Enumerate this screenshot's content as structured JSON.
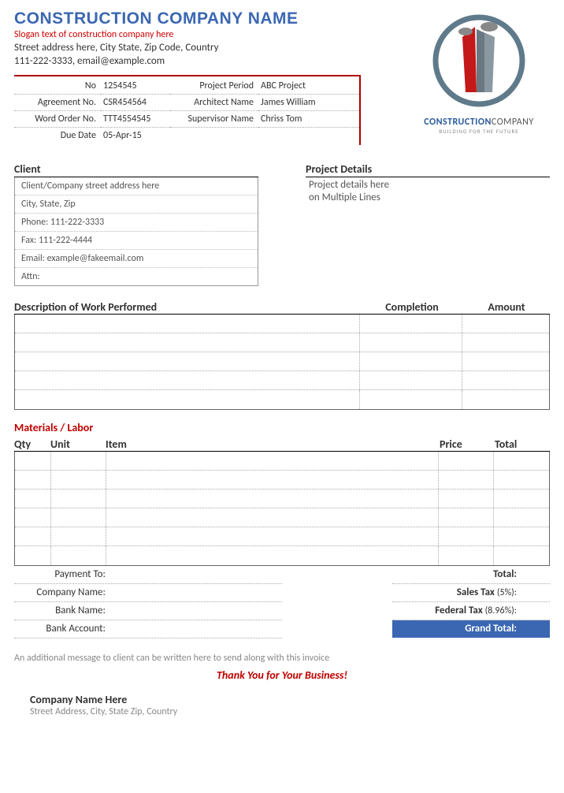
{
  "header": {
    "company_name": "CONSTRUCTION COMPANY NAME",
    "slogan": "Slogan text of construction company here",
    "address": "Street address here, City State, Zip Code, Country",
    "contact": "111-222-3333, email@example.com"
  },
  "logo": {
    "brand_line1_a": "CONSTRUCTION",
    "brand_line1_b": "COMPANY",
    "brand_line2": "BUILDING FOR THE FUTURE",
    "circle_color": "#5f7a8a",
    "building1_color": "#c41919",
    "building2_color": "#7a8a94",
    "cloud_color": "#888888"
  },
  "info": {
    "no_label": "No",
    "no_value": "1254545",
    "period_label": "Project Period",
    "period_value": "ABC Project",
    "agreement_label": "Agreement No.",
    "agreement_value": "CSR454564",
    "architect_label": "Architect Name",
    "architect_value": "James William",
    "workorder_label": "Word Order No.",
    "workorder_value": "TTT4554545",
    "supervisor_label": "Supervisor Name",
    "supervisor_value": "Chriss Tom",
    "due_label": "Due Date",
    "due_value": "05-Apr-15"
  },
  "client": {
    "title": "Client",
    "lines": [
      "Client/Company street address here",
      "City, State, Zip",
      "Phone: 111-222-3333",
      "Fax: 111-222-4444",
      "Email: example@fakeemail.com",
      "Attn:"
    ]
  },
  "project": {
    "title": "Project Details",
    "line1": "Project details here",
    "line2": "on Multiple Lines"
  },
  "work": {
    "header_desc": "Description of Work Performed",
    "header_completion": "Completion",
    "header_amount": "Amount",
    "row_count": 5
  },
  "materials": {
    "title": "Materials / Labor",
    "h_qty": "Qty",
    "h_unit": "Unit",
    "h_item": "Item",
    "h_price": "Price",
    "h_total": "Total",
    "row_count": 6
  },
  "payment": {
    "to_label": "Payment To:",
    "company_label": "Company Name:",
    "bank_label": "Bank Name:",
    "account_label": "Bank Account:"
  },
  "totals": {
    "total_label": "Total:",
    "sales_label": "Sales Tax",
    "sales_pct": "(5%):",
    "federal_label": "Federal Tax",
    "federal_pct": "(8.96%):",
    "grand_label": "Grand Total:"
  },
  "footer": {
    "message": "An additional message to client can be written here to send along with this invoice",
    "thanks": "Thank You for Your Business!",
    "company": "Company Name Here",
    "address": "Street Address, City, State Zip, Country"
  },
  "colors": {
    "title_blue": "#3b67b2",
    "accent_red": "#b00000",
    "text_red": "#c00000"
  }
}
